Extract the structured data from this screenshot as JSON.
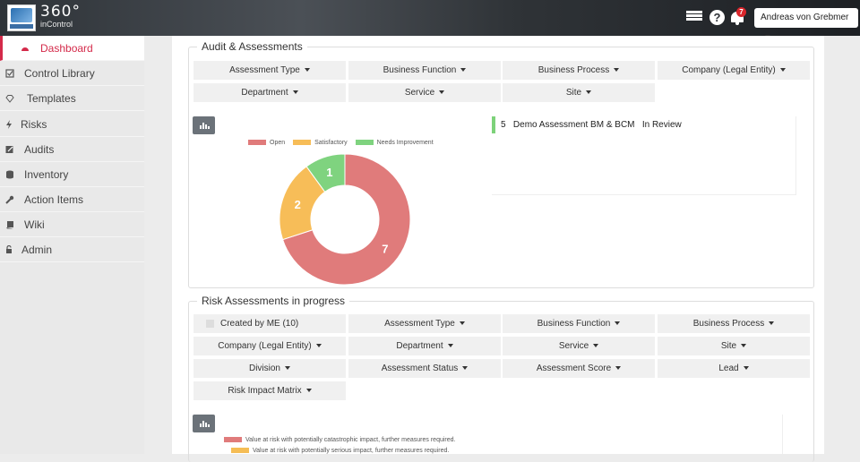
{
  "header": {
    "brand_title": "360°",
    "brand_subtitle": "inControl",
    "notification_count": "7",
    "user_name": "Andreas von Grebmer",
    "icons": [
      "list-icon",
      "help-icon",
      "bell-icon"
    ]
  },
  "sidebar": {
    "items": [
      {
        "label": "Dashboard",
        "icon": "dashboard-icon",
        "active": true
      },
      {
        "label": "Control Library",
        "icon": "checkbox-icon"
      },
      {
        "label": "Templates",
        "icon": "diamond-icon"
      },
      {
        "label": "Risks",
        "icon": "bolt-icon"
      },
      {
        "label": "Audits",
        "icon": "edit-icon"
      },
      {
        "label": "Inventory",
        "icon": "database-icon"
      },
      {
        "label": "Action Items",
        "icon": "wrench-icon"
      },
      {
        "label": "Wiki",
        "icon": "book-icon"
      },
      {
        "label": "Admin",
        "icon": "lock-icon"
      }
    ]
  },
  "audit_section": {
    "title": "Audit & Assessments",
    "filters": [
      "Assessment Type",
      "Business Function",
      "Business Process",
      "Company (Legal Entity)",
      "Department",
      "Service",
      "Site"
    ],
    "assessment": {
      "id": "5",
      "name": "Demo Assessment BM & BCM",
      "status": "In Review"
    }
  },
  "risk_section": {
    "title": "Risk Assessments in progress",
    "created_by_me": "Created by ME (10)",
    "filters": [
      "Assessment Type",
      "Business Function",
      "Business Process",
      "Company (Legal Entity)",
      "Department",
      "Service",
      "Site",
      "Division",
      "Assessment Status",
      "Assessment Score",
      "Lead",
      "Risk Impact Matrix"
    ],
    "legend": [
      {
        "label": "Value at risk with potentially catastrophic impact, further measures required.",
        "color": "#e07b7b"
      },
      {
        "label": "Value at risk with potentially serious impact, further measures required.",
        "color": "#f5bd55"
      }
    ]
  },
  "chart_data": {
    "type": "pie",
    "categories": [
      "Open",
      "Satisfactory",
      "Needs Improvement"
    ],
    "values": [
      7,
      2,
      1
    ],
    "colors": [
      "#e07b7b",
      "#f7bd58",
      "#7fd37f"
    ],
    "legend_position": "top"
  }
}
